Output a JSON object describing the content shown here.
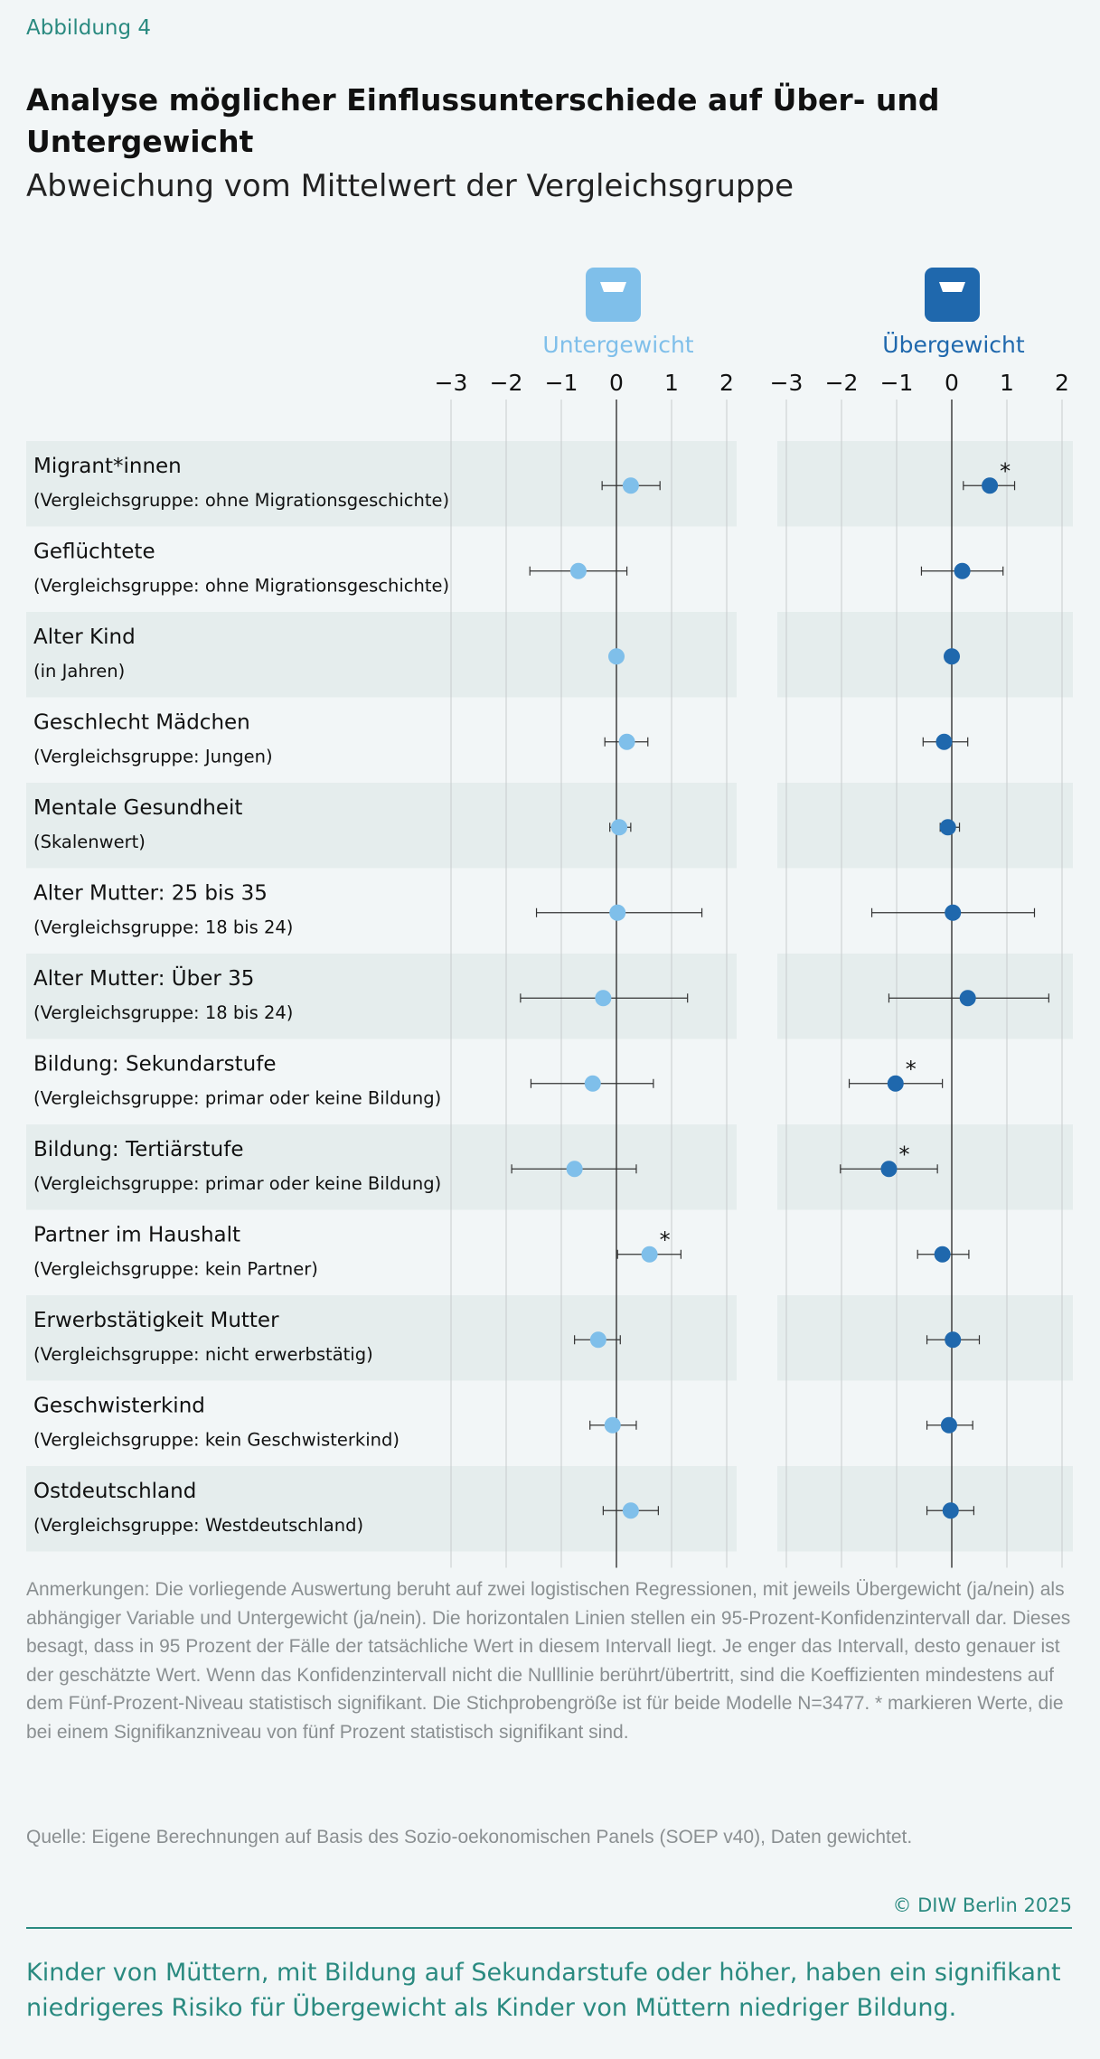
{
  "header": {
    "figure_label": "Abbildung 4",
    "title": "Analyse möglicher Einflussunterschiede auf Über- und Untergewicht",
    "subtitle": "Abweichung vom Mittelwert der Vergleichsgruppe"
  },
  "rows": [
    {
      "label": "Migrant*innen",
      "note": "(Vergleichsgruppe: ohne Migrationsgeschichte)"
    },
    {
      "label": "Geflüchtete",
      "note": "(Vergleichsgruppe: ohne Migrationsgeschichte)"
    },
    {
      "label": "Alter Kind",
      "note": "(in Jahren)"
    },
    {
      "label": "Geschlecht Mädchen",
      "note": "(Vergleichsgruppe: Jungen)"
    },
    {
      "label": "Mentale Gesundheit",
      "note": "(Skalenwert)"
    },
    {
      "label": "Alter Mutter: 25 bis 35",
      "note": "(Vergleichsgruppe: 18 bis 24)"
    },
    {
      "label": "Alter Mutter: Über 35",
      "note": "(Vergleichsgruppe: 18 bis 24)"
    },
    {
      "label": "Bildung: Sekundarstufe",
      "note": "(Vergleichsgruppe: primar oder keine Bildung)"
    },
    {
      "label": "Bildung: Tertiärstufe",
      "note": "(Vergleichsgruppe: primar oder keine Bildung)"
    },
    {
      "label": "Partner im Haushalt",
      "note": "(Vergleichsgruppe: kein Partner)"
    },
    {
      "label": "Erwerbstätigkeit Mutter",
      "note": "(Vergleichsgruppe: nicht erwerbstätig)"
    },
    {
      "label": "Geschwisterkind",
      "note": "(Vergleichsgruppe: kein Geschwisterkind)"
    },
    {
      "label": "Ostdeutschland",
      "note": "(Vergleichsgruppe: Westdeutschland)"
    }
  ],
  "chart_data": [
    {
      "type": "forest",
      "title": "Untergewicht",
      "color": "#7fbfea",
      "xlim": [
        -3,
        2
      ],
      "xticks": [
        {
          "value": -3,
          "label": "−3"
        },
        {
          "value": -2,
          "label": "−2"
        },
        {
          "value": -1,
          "label": "−1"
        },
        0,
        1,
        2
      ],
      "grid": true,
      "values": [
        0.26,
        -0.69,
        0.0,
        0.19,
        0.05,
        0.02,
        -0.24,
        -0.43,
        -0.76,
        0.6,
        -0.33,
        -0.07,
        0.26
      ],
      "lower": [
        -0.26,
        -1.57,
        -0.02,
        -0.21,
        -0.12,
        -1.45,
        -1.74,
        -1.55,
        -1.9,
        0.02,
        -0.76,
        -0.48,
        -0.24
      ],
      "upper": [
        0.79,
        0.19,
        0.02,
        0.57,
        0.26,
        1.55,
        1.29,
        0.67,
        0.36,
        1.17,
        0.07,
        0.36,
        0.76
      ],
      "significance_labels": [
        null,
        null,
        null,
        null,
        null,
        null,
        null,
        null,
        null,
        "*",
        null,
        null,
        null
      ]
    },
    {
      "type": "forest",
      "title": "Übergewicht",
      "color": "#1f68ad",
      "xlim": [
        -3,
        2
      ],
      "xticks": [
        {
          "value": -3,
          "label": "−3"
        },
        {
          "value": -2,
          "label": "−2"
        },
        {
          "value": -1,
          "label": "−1"
        },
        0,
        1,
        2
      ],
      "grid": true,
      "values": [
        0.69,
        0.19,
        0.0,
        -0.14,
        -0.07,
        0.02,
        0.29,
        -1.02,
        -1.14,
        -0.17,
        0.02,
        -0.05,
        -0.02
      ],
      "lower": [
        0.21,
        -0.55,
        -0.02,
        -0.52,
        -0.21,
        -1.45,
        -1.14,
        -1.86,
        -2.02,
        -0.62,
        -0.45,
        -0.45,
        -0.45
      ],
      "upper": [
        1.14,
        0.93,
        0.02,
        0.29,
        0.14,
        1.5,
        1.76,
        -0.17,
        -0.26,
        0.31,
        0.5,
        0.38,
        0.4
      ],
      "significance_labels": [
        "*",
        null,
        null,
        null,
        null,
        null,
        null,
        "*",
        "*",
        null,
        null,
        null,
        null
      ]
    }
  ],
  "footer": {
    "notes": "Anmerkungen: Die vorliegende Auswertung beruht auf zwei logistischen Regressionen, mit jeweils Übergewicht (ja/nein) als abhängiger Variable und Untergewicht (ja/nein). Die horizontalen Linien stellen ein 95-Prozent-Konfidenzintervall dar. Dieses besagt, dass in 95 Prozent der Fälle der tatsächliche Wert in diesem Intervall liegt. Je enger das Intervall, desto genauer ist der geschätzte Wert. Wenn das Konfidenzintervall nicht die Nulllinie berührt/übertritt, sind die Koeffizienten mindestens auf dem Fünf-Prozent-Niveau statistisch signifikant. Die Stichprobengröße ist für beide Modelle N=3477. * markieren Werte, die bei einem Signifikanzniveau von fünf Prozent statistisch signifikant sind.",
    "source": "Quelle: Eigene Berechnungen auf Basis des Sozio-oekonomischen Panels (SOEP v40), Daten gewichtet.",
    "copyright": "© DIW Berlin 2025",
    "takeaway": "Kinder von Müttern, mit Bildung auf Sekundarstufe oder höher, haben ein signifikant niedrigeres Risiko für Übergewicht als Kinder von Müttern niedriger Bildung."
  }
}
